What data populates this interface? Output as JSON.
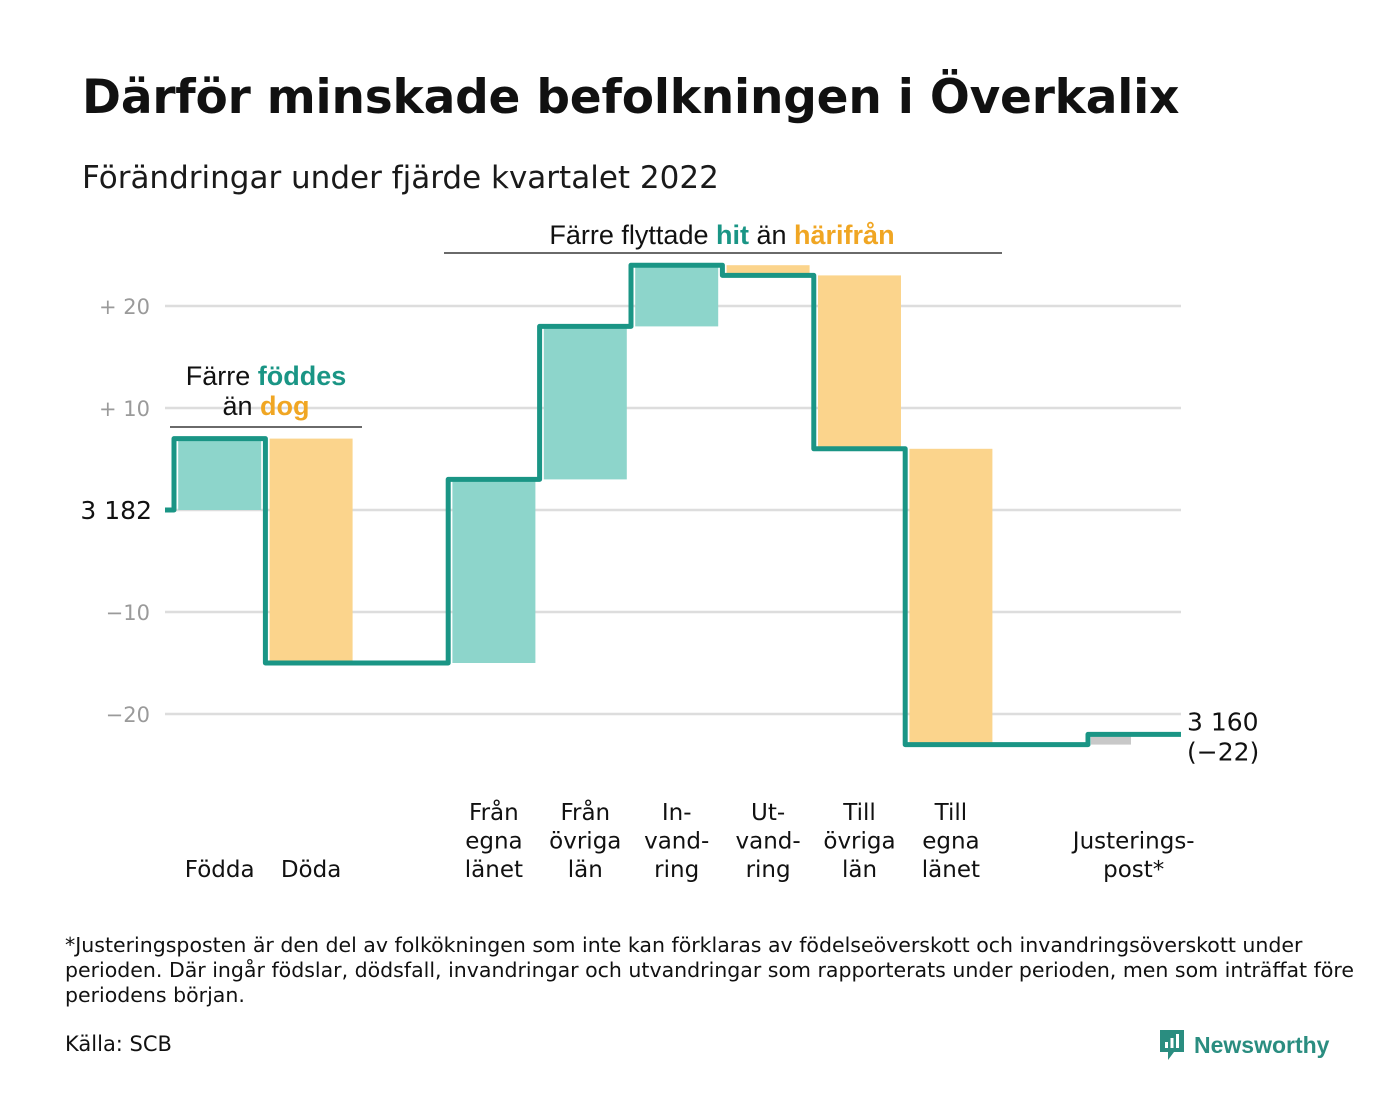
{
  "title": "Därför minskade befolkningen i Överkalix",
  "subtitle": "Förändringar under fjärde kvartalet 2022",
  "chart_data": {
    "type": "waterfall",
    "start_value": 3182,
    "start_label": "3 182",
    "end_label_value": "3 160",
    "end_label_change": "(−22)",
    "y_ticks": [
      {
        "value": 20,
        "label": "+ 20"
      },
      {
        "value": 10,
        "label": "+ 10"
      },
      {
        "value": 0,
        "label": ""
      },
      {
        "value": -10,
        "label": "−10"
      },
      {
        "value": -20,
        "label": "−20"
      }
    ],
    "ylim": [
      -23,
      24
    ],
    "steps": [
      {
        "labels": [
          "Födda"
        ],
        "value": 7,
        "kind": "in"
      },
      {
        "labels": [
          "Döda"
        ],
        "value": -22,
        "kind": "out"
      },
      {
        "labels": [],
        "value": 0,
        "kind": "none"
      },
      {
        "labels": [
          "Från",
          "egna",
          "länet"
        ],
        "value": 18,
        "kind": "in"
      },
      {
        "labels": [
          "Från",
          "övriga",
          "län"
        ],
        "value": 15,
        "kind": "in"
      },
      {
        "labels": [
          "In-",
          "vand-",
          "ring"
        ],
        "value": 6,
        "kind": "in"
      },
      {
        "labels": [
          "Ut-",
          "vand-",
          "ring"
        ],
        "value": -1,
        "kind": "out"
      },
      {
        "labels": [
          "Till",
          "övriga",
          "län"
        ],
        "value": -17,
        "kind": "out"
      },
      {
        "labels": [
          "Till",
          "egna",
          "länet"
        ],
        "value": -29,
        "kind": "out"
      },
      {
        "labels": [],
        "value": 0,
        "kind": "none"
      },
      {
        "labels": [
          "Justerings-",
          "post*"
        ],
        "value": 1,
        "kind": "adjust"
      }
    ],
    "annotations": [
      {
        "parts": [
          {
            "text": "Färre ",
            "style": "plain"
          },
          {
            "text": "föddes",
            "style": "teal"
          }
        ],
        "parts2": [
          {
            "text": "än ",
            "style": "plain"
          },
          {
            "text": "dog",
            "style": "orange"
          }
        ]
      },
      {
        "parts": [
          {
            "text": "Färre flyttade ",
            "style": "plain"
          },
          {
            "text": "hit",
            "style": "teal"
          },
          {
            "text": " än ",
            "style": "plain"
          },
          {
            "text": "härifrån",
            "style": "orange"
          }
        ]
      }
    ],
    "colors": {
      "in": "#8dd5cb",
      "out": "#fbd48c",
      "adjust": "#c8c8c8",
      "line": "#1a9585",
      "grid": "#dddddd"
    }
  },
  "footnote": "*Justeringsposten är den del av folkökningen som inte kan förklaras av födelseöverskott och invandringsöverskott under perioden. Där ingår födslar, dödsfall, invandringar och utvandringar som rapporterats under perioden, men som inträffat före periodens början.",
  "source": "Källa: SCB",
  "brand": {
    "name": "Newsworthy",
    "icon": "newsworthy-logo-icon",
    "color": "#2a8d80"
  }
}
